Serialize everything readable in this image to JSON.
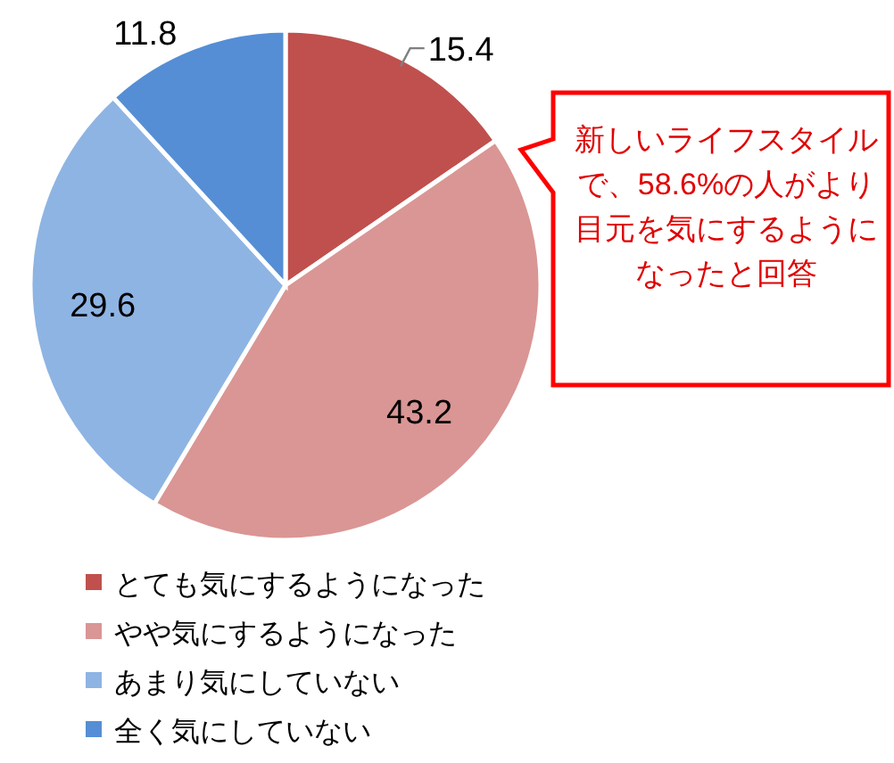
{
  "chart_data": {
    "type": "pie",
    "categories": [
      "とても気にするようになった",
      "やや気にするようになった",
      "あまり気にしていない",
      "全く気にしていない"
    ],
    "values": [
      15.4,
      43.2,
      29.6,
      11.8
    ],
    "colors": [
      "#c0504d",
      "#d99694",
      "#8eb4e3",
      "#558ed5"
    ],
    "data_labels": true,
    "legend": "bottom left",
    "annotations": [
      "新しいライフスタイルで、58.6%の人がより目元を気にするようになったと回答"
    ]
  }
}
